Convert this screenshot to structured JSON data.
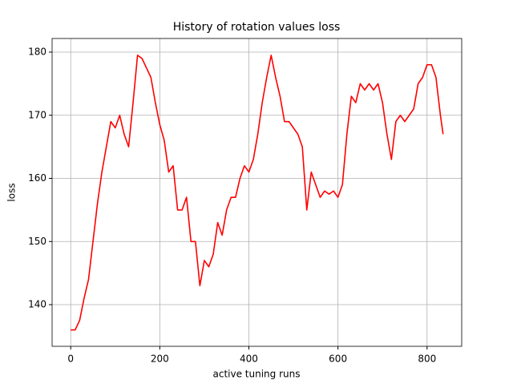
{
  "chart_data": {
    "type": "line",
    "title": "History of rotation values loss",
    "xlabel": "active tuning runs",
    "ylabel": "loss",
    "x": [
      0,
      10,
      20,
      30,
      40,
      50,
      60,
      70,
      80,
      90,
      100,
      110,
      120,
      130,
      140,
      150,
      160,
      170,
      180,
      190,
      200,
      210,
      220,
      230,
      240,
      250,
      260,
      270,
      280,
      290,
      300,
      310,
      320,
      330,
      340,
      350,
      360,
      370,
      380,
      390,
      400,
      410,
      420,
      430,
      440,
      450,
      460,
      470,
      480,
      490,
      500,
      510,
      520,
      530,
      540,
      550,
      560,
      570,
      580,
      590,
      600,
      610,
      620,
      630,
      640,
      650,
      660,
      670,
      680,
      690,
      700,
      710,
      720,
      730,
      740,
      750,
      760,
      770,
      780,
      790,
      800,
      810,
      820,
      830,
      836
    ],
    "series": [
      {
        "name": "loss",
        "color": "#ff0000",
        "values": [
          136,
          136,
          137.5,
          141,
          144,
          150,
          156,
          161,
          165,
          169,
          168,
          170,
          167,
          165,
          172,
          179.5,
          179,
          177.5,
          176,
          172,
          168.5,
          166,
          161,
          162,
          155,
          155,
          157,
          150,
          150,
          143,
          147,
          146,
          148,
          153,
          151,
          155,
          157,
          157,
          160,
          162,
          161,
          163,
          167,
          172,
          176,
          179.5,
          176,
          173,
          169,
          169,
          168,
          167,
          165,
          155,
          161,
          159,
          157,
          158,
          157.5,
          158,
          157,
          159,
          167,
          173,
          172,
          175,
          174,
          175,
          174,
          175,
          172,
          167,
          163,
          169,
          170,
          169,
          170,
          171,
          175,
          176,
          178,
          178,
          176,
          170,
          167
        ]
      }
    ],
    "xlim": [
      -41.8,
      877.8
    ],
    "ylim": [
      133.4,
      182.16
    ],
    "xticks": [
      0,
      200,
      400,
      600,
      800
    ],
    "yticks": [
      140,
      150,
      160,
      170,
      180
    ],
    "grid": true
  }
}
